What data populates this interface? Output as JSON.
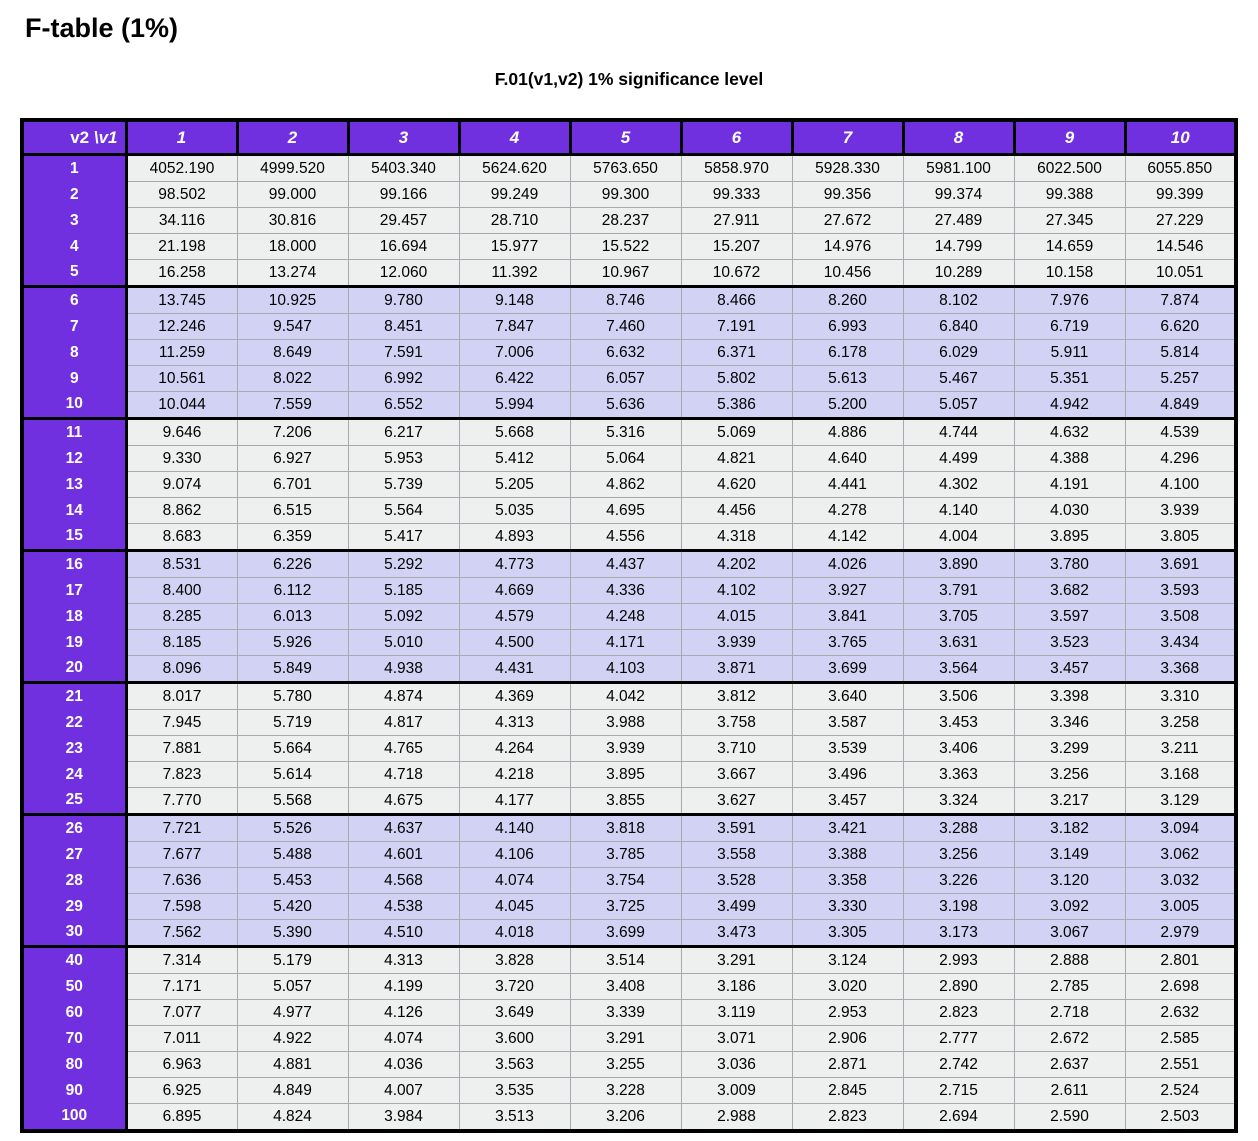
{
  "page": {
    "title": "F-table (1%)",
    "subtitle": "F.01(v1,v2) 1% significance level"
  },
  "colors": {
    "header_purple": "#7030e0",
    "band_light": "#edf0ee",
    "band_lavender": "#d2d3f4",
    "grid_line": "#a4aaad",
    "outer_border": "#000000",
    "header_text": "#ffffff"
  },
  "table": {
    "corner": {
      "plain": "v2 ",
      "italic": "\\v1"
    },
    "column_headers": [
      "1",
      "2",
      "3",
      "4",
      "5",
      "6",
      "7",
      "8",
      "9",
      "10"
    ],
    "row_groups": [
      {
        "band": "light",
        "rows": [
          {
            "v2": "1",
            "values": [
              "4052.190",
              "4999.520",
              "5403.340",
              "5624.620",
              "5763.650",
              "5858.970",
              "5928.330",
              "5981.100",
              "6022.500",
              "6055.850"
            ]
          },
          {
            "v2": "2",
            "values": [
              "98.502",
              "99.000",
              "99.166",
              "99.249",
              "99.300",
              "99.333",
              "99.356",
              "99.374",
              "99.388",
              "99.399"
            ]
          },
          {
            "v2": "3",
            "values": [
              "34.116",
              "30.816",
              "29.457",
              "28.710",
              "28.237",
              "27.911",
              "27.672",
              "27.489",
              "27.345",
              "27.229"
            ]
          },
          {
            "v2": "4",
            "values": [
              "21.198",
              "18.000",
              "16.694",
              "15.977",
              "15.522",
              "15.207",
              "14.976",
              "14.799",
              "14.659",
              "14.546"
            ]
          },
          {
            "v2": "5",
            "values": [
              "16.258",
              "13.274",
              "12.060",
              "11.392",
              "10.967",
              "10.672",
              "10.456",
              "10.289",
              "10.158",
              "10.051"
            ]
          }
        ]
      },
      {
        "band": "lavender",
        "rows": [
          {
            "v2": "6",
            "values": [
              "13.745",
              "10.925",
              "9.780",
              "9.148",
              "8.746",
              "8.466",
              "8.260",
              "8.102",
              "7.976",
              "7.874"
            ]
          },
          {
            "v2": "7",
            "values": [
              "12.246",
              "9.547",
              "8.451",
              "7.847",
              "7.460",
              "7.191",
              "6.993",
              "6.840",
              "6.719",
              "6.620"
            ]
          },
          {
            "v2": "8",
            "values": [
              "11.259",
              "8.649",
              "7.591",
              "7.006",
              "6.632",
              "6.371",
              "6.178",
              "6.029",
              "5.911",
              "5.814"
            ]
          },
          {
            "v2": "9",
            "values": [
              "10.561",
              "8.022",
              "6.992",
              "6.422",
              "6.057",
              "5.802",
              "5.613",
              "5.467",
              "5.351",
              "5.257"
            ]
          },
          {
            "v2": "10",
            "values": [
              "10.044",
              "7.559",
              "6.552",
              "5.994",
              "5.636",
              "5.386",
              "5.200",
              "5.057",
              "4.942",
              "4.849"
            ]
          }
        ]
      },
      {
        "band": "light",
        "rows": [
          {
            "v2": "11",
            "values": [
              "9.646",
              "7.206",
              "6.217",
              "5.668",
              "5.316",
              "5.069",
              "4.886",
              "4.744",
              "4.632",
              "4.539"
            ]
          },
          {
            "v2": "12",
            "values": [
              "9.330",
              "6.927",
              "5.953",
              "5.412",
              "5.064",
              "4.821",
              "4.640",
              "4.499",
              "4.388",
              "4.296"
            ]
          },
          {
            "v2": "13",
            "values": [
              "9.074",
              "6.701",
              "5.739",
              "5.205",
              "4.862",
              "4.620",
              "4.441",
              "4.302",
              "4.191",
              "4.100"
            ]
          },
          {
            "v2": "14",
            "values": [
              "8.862",
              "6.515",
              "5.564",
              "5.035",
              "4.695",
              "4.456",
              "4.278",
              "4.140",
              "4.030",
              "3.939"
            ]
          },
          {
            "v2": "15",
            "values": [
              "8.683",
              "6.359",
              "5.417",
              "4.893",
              "4.556",
              "4.318",
              "4.142",
              "4.004",
              "3.895",
              "3.805"
            ]
          }
        ]
      },
      {
        "band": "lavender",
        "rows": [
          {
            "v2": "16",
            "values": [
              "8.531",
              "6.226",
              "5.292",
              "4.773",
              "4.437",
              "4.202",
              "4.026",
              "3.890",
              "3.780",
              "3.691"
            ]
          },
          {
            "v2": "17",
            "values": [
              "8.400",
              "6.112",
              "5.185",
              "4.669",
              "4.336",
              "4.102",
              "3.927",
              "3.791",
              "3.682",
              "3.593"
            ]
          },
          {
            "v2": "18",
            "values": [
              "8.285",
              "6.013",
              "5.092",
              "4.579",
              "4.248",
              "4.015",
              "3.841",
              "3.705",
              "3.597",
              "3.508"
            ]
          },
          {
            "v2": "19",
            "values": [
              "8.185",
              "5.926",
              "5.010",
              "4.500",
              "4.171",
              "3.939",
              "3.765",
              "3.631",
              "3.523",
              "3.434"
            ]
          },
          {
            "v2": "20",
            "values": [
              "8.096",
              "5.849",
              "4.938",
              "4.431",
              "4.103",
              "3.871",
              "3.699",
              "3.564",
              "3.457",
              "3.368"
            ]
          }
        ]
      },
      {
        "band": "light",
        "rows": [
          {
            "v2": "21",
            "values": [
              "8.017",
              "5.780",
              "4.874",
              "4.369",
              "4.042",
              "3.812",
              "3.640",
              "3.506",
              "3.398",
              "3.310"
            ]
          },
          {
            "v2": "22",
            "values": [
              "7.945",
              "5.719",
              "4.817",
              "4.313",
              "3.988",
              "3.758",
              "3.587",
              "3.453",
              "3.346",
              "3.258"
            ]
          },
          {
            "v2": "23",
            "values": [
              "7.881",
              "5.664",
              "4.765",
              "4.264",
              "3.939",
              "3.710",
              "3.539",
              "3.406",
              "3.299",
              "3.211"
            ]
          },
          {
            "v2": "24",
            "values": [
              "7.823",
              "5.614",
              "4.718",
              "4.218",
              "3.895",
              "3.667",
              "3.496",
              "3.363",
              "3.256",
              "3.168"
            ]
          },
          {
            "v2": "25",
            "values": [
              "7.770",
              "5.568",
              "4.675",
              "4.177",
              "3.855",
              "3.627",
              "3.457",
              "3.324",
              "3.217",
              "3.129"
            ]
          }
        ]
      },
      {
        "band": "lavender",
        "rows": [
          {
            "v2": "26",
            "values": [
              "7.721",
              "5.526",
              "4.637",
              "4.140",
              "3.818",
              "3.591",
              "3.421",
              "3.288",
              "3.182",
              "3.094"
            ]
          },
          {
            "v2": "27",
            "values": [
              "7.677",
              "5.488",
              "4.601",
              "4.106",
              "3.785",
              "3.558",
              "3.388",
              "3.256",
              "3.149",
              "3.062"
            ]
          },
          {
            "v2": "28",
            "values": [
              "7.636",
              "5.453",
              "4.568",
              "4.074",
              "3.754",
              "3.528",
              "3.358",
              "3.226",
              "3.120",
              "3.032"
            ]
          },
          {
            "v2": "29",
            "values": [
              "7.598",
              "5.420",
              "4.538",
              "4.045",
              "3.725",
              "3.499",
              "3.330",
              "3.198",
              "3.092",
              "3.005"
            ]
          },
          {
            "v2": "30",
            "values": [
              "7.562",
              "5.390",
              "4.510",
              "4.018",
              "3.699",
              "3.473",
              "3.305",
              "3.173",
              "3.067",
              "2.979"
            ]
          }
        ]
      },
      {
        "band": "light",
        "rows": [
          {
            "v2": "40",
            "values": [
              "7.314",
              "5.179",
              "4.313",
              "3.828",
              "3.514",
              "3.291",
              "3.124",
              "2.993",
              "2.888",
              "2.801"
            ]
          },
          {
            "v2": "50",
            "values": [
              "7.171",
              "5.057",
              "4.199",
              "3.720",
              "3.408",
              "3.186",
              "3.020",
              "2.890",
              "2.785",
              "2.698"
            ]
          },
          {
            "v2": "60",
            "values": [
              "7.077",
              "4.977",
              "4.126",
              "3.649",
              "3.339",
              "3.119",
              "2.953",
              "2.823",
              "2.718",
              "2.632"
            ]
          },
          {
            "v2": "70",
            "values": [
              "7.011",
              "4.922",
              "4.074",
              "3.600",
              "3.291",
              "3.071",
              "2.906",
              "2.777",
              "2.672",
              "2.585"
            ]
          },
          {
            "v2": "80",
            "values": [
              "6.963",
              "4.881",
              "4.036",
              "3.563",
              "3.255",
              "3.036",
              "2.871",
              "2.742",
              "2.637",
              "2.551"
            ]
          },
          {
            "v2": "90",
            "values": [
              "6.925",
              "4.849",
              "4.007",
              "3.535",
              "3.228",
              "3.009",
              "2.845",
              "2.715",
              "2.611",
              "2.524"
            ]
          },
          {
            "v2": "100",
            "values": [
              "6.895",
              "4.824",
              "3.984",
              "3.513",
              "3.206",
              "2.988",
              "2.823",
              "2.694",
              "2.590",
              "2.503"
            ]
          }
        ]
      }
    ]
  }
}
